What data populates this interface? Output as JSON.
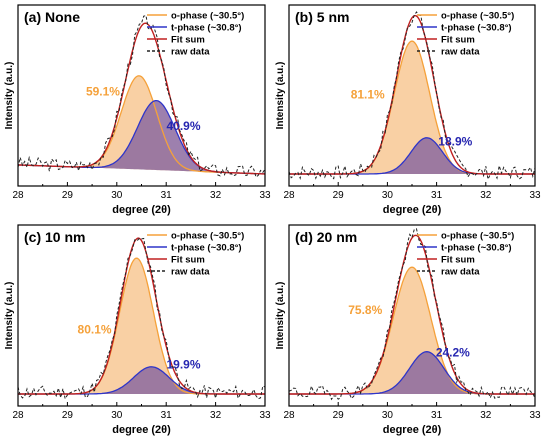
{
  "chart_data": [
    {
      "type": "area",
      "panel_label": "(a) None",
      "xlabel": "degree (2θ)",
      "ylabel": "Intensity (a.u.)",
      "xlim": [
        28,
        33
      ],
      "x_ticks": [
        "28",
        "29",
        "30",
        "31",
        "32",
        "33"
      ],
      "legend_position": "top-right",
      "series": [
        {
          "name": "o-phase (~30.5°)",
          "color": "#f5a13a",
          "fill": "#f8c894",
          "center": 30.45,
          "sigma": 0.36,
          "amplitude": 0.62
        },
        {
          "name": "t-phase (~30.8°)",
          "color": "#2f35c9",
          "fill": "#8c6aa0",
          "center": 30.8,
          "sigma": 0.38,
          "amplitude": 0.46
        },
        {
          "name": "Fit sum",
          "color": "#c02020"
        },
        {
          "name": "raw data",
          "color": "#222222"
        }
      ],
      "annotations": [
        {
          "text": "59.1%",
          "color": "#f5a13a",
          "x": 29.72,
          "y": 0.52
        },
        {
          "text": "40.9%",
          "color": "#2626b0",
          "x": 31.35,
          "y": 0.29
        }
      ],
      "baseline": [
        0.06,
        0.0
      ],
      "noise_seed": 3
    },
    {
      "type": "area",
      "panel_label": "(b) 5 nm",
      "xlabel": "degree (2θ)",
      "ylabel": "Intensity (a.u.)",
      "xlim": [
        28,
        33
      ],
      "x_ticks": [
        "28",
        "29",
        "30",
        "31",
        "32",
        "33"
      ],
      "legend_position": "top-right",
      "series": [
        {
          "name": "o-phase (~30.5°)",
          "color": "#f5a13a",
          "fill": "#f8c894",
          "center": 30.5,
          "sigma": 0.36,
          "amplitude": 0.88
        },
        {
          "name": "t-phase (~30.8°)",
          "color": "#2f35c9",
          "fill": "#8c6aa0",
          "center": 30.8,
          "sigma": 0.32,
          "amplitude": 0.24
        },
        {
          "name": "Fit sum",
          "color": "#c02020"
        },
        {
          "name": "raw data",
          "color": "#222222"
        }
      ],
      "annotations": [
        {
          "text": "81.1%",
          "color": "#f5a13a",
          "x": 29.6,
          "y": 0.5
        },
        {
          "text": "18.9%",
          "color": "#2626b0",
          "x": 31.38,
          "y": 0.19
        }
      ],
      "baseline": [
        0.0,
        0.0
      ],
      "noise_seed": 7
    },
    {
      "type": "area",
      "panel_label": "(c) 10 nm",
      "xlabel": "degree (2θ)",
      "ylabel": "Intensity (a.u.)",
      "xlim": [
        28,
        33
      ],
      "x_ticks": [
        "28",
        "29",
        "30",
        "31",
        "32",
        "33"
      ],
      "legend_position": "top-right",
      "series": [
        {
          "name": "o-phase (~30.5°)",
          "color": "#f5a13a",
          "fill": "#f8c894",
          "center": 30.4,
          "sigma": 0.34,
          "amplitude": 0.9
        },
        {
          "name": "t-phase (~30.8°)",
          "color": "#2f35c9",
          "fill": "#8c6aa0",
          "center": 30.7,
          "sigma": 0.36,
          "amplitude": 0.18
        },
        {
          "name": "Fit sum",
          "color": "#c02020"
        },
        {
          "name": "raw data",
          "color": "#222222"
        }
      ],
      "annotations": [
        {
          "text": "80.1%",
          "color": "#f5a13a",
          "x": 29.55,
          "y": 0.4
        },
        {
          "text": "19.9%",
          "color": "#2626b0",
          "x": 31.35,
          "y": 0.17
        }
      ],
      "baseline": [
        0.0,
        0.0
      ],
      "noise_seed": 11
    },
    {
      "type": "area",
      "panel_label": "(d) 20 nm",
      "xlabel": "degree (2θ)",
      "ylabel": "Intensity (a.u.)",
      "xlim": [
        28,
        33
      ],
      "x_ticks": [
        "28",
        "29",
        "30",
        "31",
        "32",
        "33"
      ],
      "legend_position": "top-right",
      "series": [
        {
          "name": "o-phase (~30.5°)",
          "color": "#f5a13a",
          "fill": "#f8c894",
          "center": 30.5,
          "sigma": 0.38,
          "amplitude": 0.84
        },
        {
          "name": "t-phase (~30.8°)",
          "color": "#2f35c9",
          "fill": "#8c6aa0",
          "center": 30.8,
          "sigma": 0.35,
          "amplitude": 0.28
        },
        {
          "name": "Fit sum",
          "color": "#c02020"
        },
        {
          "name": "raw data",
          "color": "#222222"
        }
      ],
      "annotations": [
        {
          "text": "75.8%",
          "color": "#f5a13a",
          "x": 29.55,
          "y": 0.53
        },
        {
          "text": "24.2%",
          "color": "#2626b0",
          "x": 31.33,
          "y": 0.25
        }
      ],
      "baseline": [
        0.0,
        0.0
      ],
      "noise_seed": 19
    }
  ]
}
